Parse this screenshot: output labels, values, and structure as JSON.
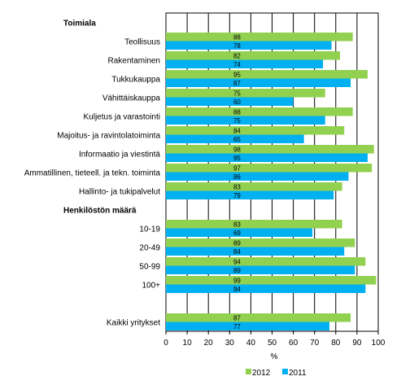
{
  "chart_data": {
    "type": "bar",
    "orientation": "horizontal",
    "xlabel": "%",
    "xlim": [
      0,
      100
    ],
    "x_ticks": [
      "0",
      "10",
      "20",
      "30",
      "40",
      "50",
      "60",
      "70",
      "80",
      "90",
      "100"
    ],
    "grid": "vertical",
    "legend_placement": "bottom",
    "series": [
      {
        "name": "2012",
        "color": "#92d050"
      },
      {
        "name": "2011",
        "color": "#00b0f0"
      }
    ],
    "groups": [
      {
        "header": "Toimiala",
        "rows": [
          {
            "label": "Teollisuus",
            "values": [
              88,
              78
            ]
          },
          {
            "label": "Rakentaminen",
            "values": [
              82,
              74
            ]
          },
          {
            "label": "Tukkukauppa",
            "values": [
              95,
              87
            ]
          },
          {
            "label": "Vähittäiskauppa",
            "values": [
              75,
              60
            ]
          },
          {
            "label": "Kuljetus ja varastointi",
            "values": [
              88,
              75
            ]
          },
          {
            "label": "Majoitus- ja ravintolatoiminta",
            "values": [
              84,
              65
            ]
          },
          {
            "label": "Informaatio ja viestintä",
            "values": [
              98,
              95
            ]
          },
          {
            "label": "Ammatillinen, tieteell. ja tekn. toiminta",
            "values": [
              97,
              86
            ]
          },
          {
            "label": "Hallinto- ja tukipalvelut",
            "values": [
              83,
              79
            ]
          }
        ]
      },
      {
        "header": "Henkilöstön määrä",
        "rows": [
          {
            "label": "10-19",
            "values": [
              83,
              69
            ]
          },
          {
            "label": "20-49",
            "values": [
              89,
              84
            ]
          },
          {
            "label": "50-99",
            "values": [
              94,
              89
            ]
          },
          {
            "label": "100+",
            "values": [
              99,
              94
            ]
          }
        ]
      },
      {
        "header": "",
        "rows": [
          {
            "label": "Kaikki yritykset",
            "values": [
              87,
              77
            ]
          }
        ]
      }
    ]
  }
}
